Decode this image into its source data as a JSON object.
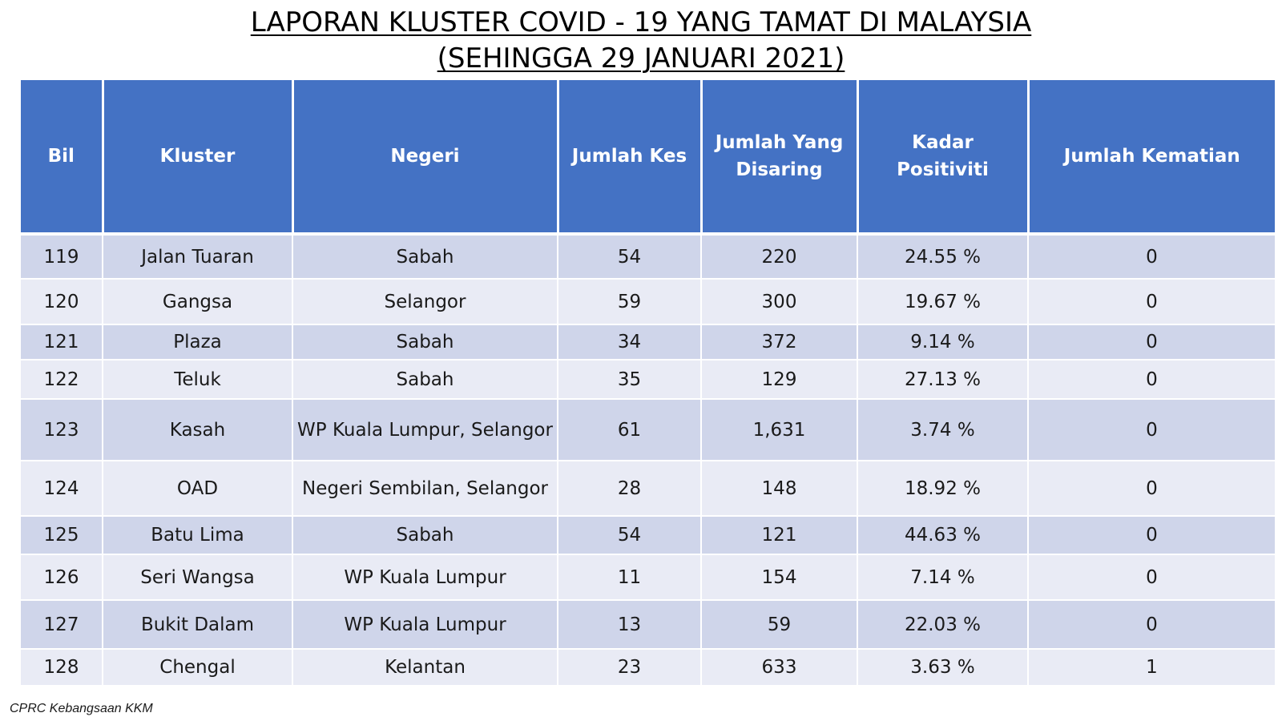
{
  "title": {
    "line1": "LAPORAN KLUSTER COVID - 19 YANG TAMAT DI MALAYSIA",
    "line2": "(SEHINGGA 29 JANUARI 2021)"
  },
  "table": {
    "headers": [
      "Bil",
      "Kluster",
      "Negeri",
      "Jumlah Kes",
      "Jumlah Yang Disaring",
      "Kadar Positiviti",
      "Jumlah Kematian"
    ],
    "rows": [
      [
        "119",
        "Jalan Tuaran",
        "Sabah",
        "54",
        "220",
        "24.55 %",
        "0"
      ],
      [
        "120",
        "Gangsa",
        "Selangor",
        "59",
        "300",
        "19.67 %",
        "0"
      ],
      [
        "121",
        "Plaza",
        "Sabah",
        "34",
        "372",
        "9.14 %",
        "0"
      ],
      [
        "122",
        "Teluk",
        "Sabah",
        "35",
        "129",
        "27.13 %",
        "0"
      ],
      [
        "123",
        "Kasah",
        "WP Kuala Lumpur, Selangor",
        "61",
        "1,631",
        "3.74 %",
        "0"
      ],
      [
        "124",
        "OAD",
        "Negeri Sembilan, Selangor",
        "28",
        "148",
        "18.92 %",
        "0"
      ],
      [
        "125",
        "Batu Lima",
        "Sabah",
        "54",
        "121",
        "44.63 %",
        "0"
      ],
      [
        "126",
        "Seri Wangsa",
        "WP Kuala Lumpur",
        "11",
        "154",
        "7.14 %",
        "0"
      ],
      [
        "127",
        "Bukit Dalam",
        "WP Kuala Lumpur",
        "13",
        "59",
        "22.03 %",
        "0"
      ],
      [
        "128",
        "Chengal",
        "Kelantan",
        "23",
        "633",
        "3.63 %",
        "1"
      ]
    ]
  },
  "footer": "CPRC Kebangsaan KKM",
  "colors": {
    "header_bg": "#4472c4",
    "row_dark": "#cfd5ea",
    "row_light": "#e9ebf5"
  }
}
